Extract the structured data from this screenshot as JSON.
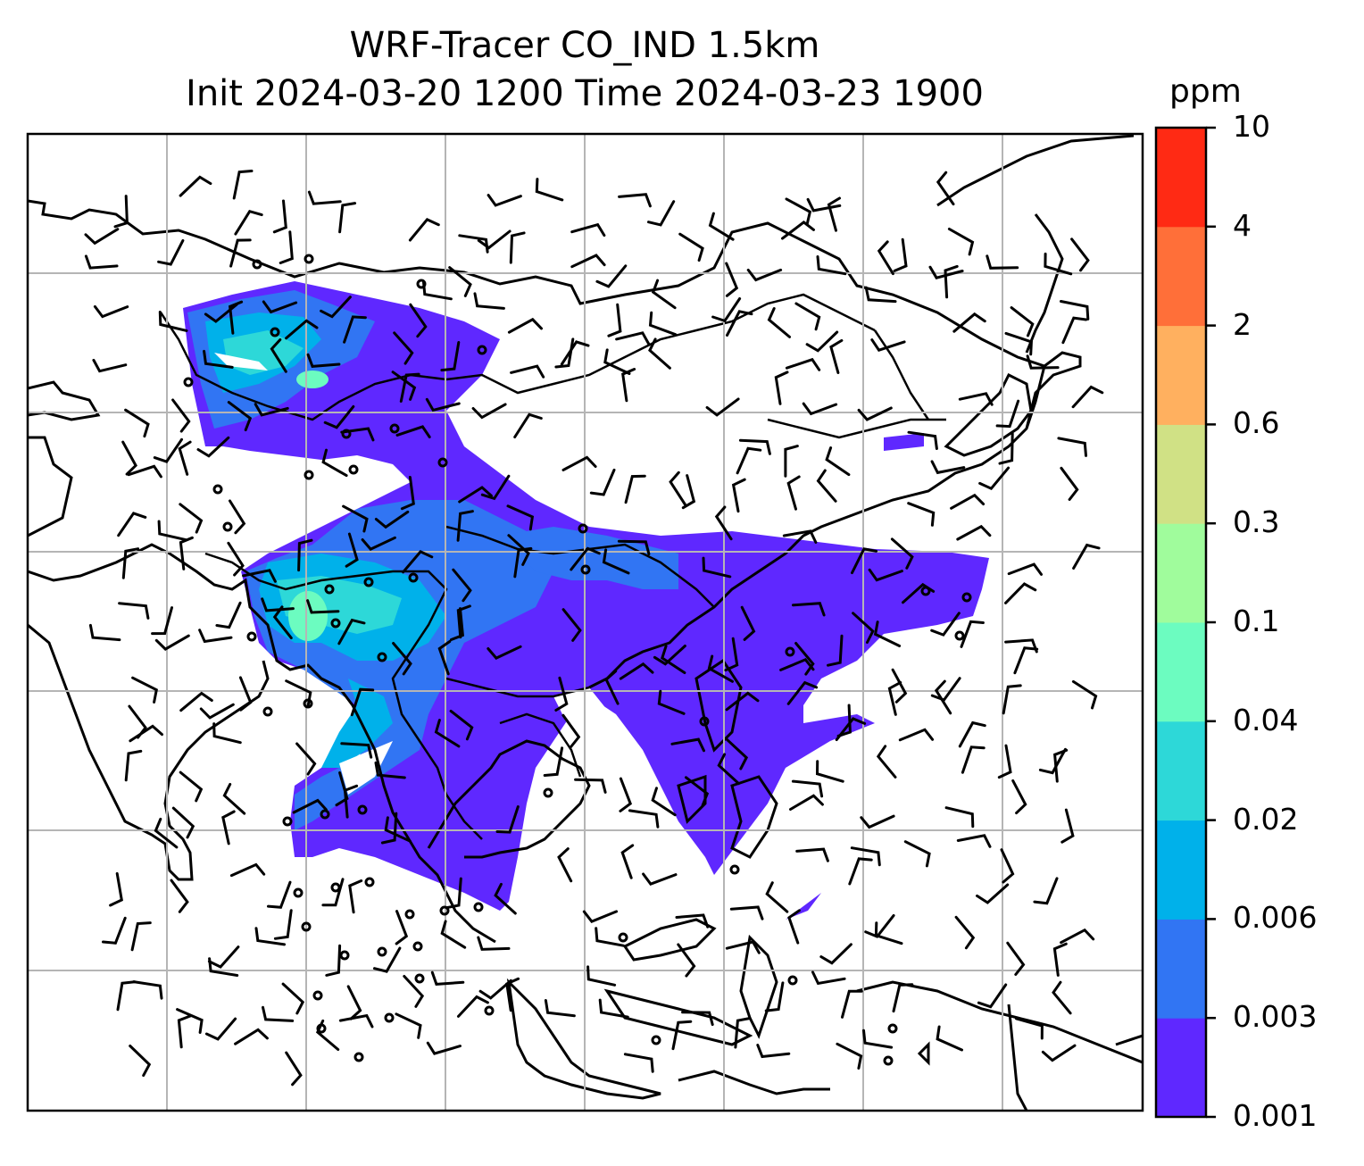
{
  "title_line1": "WRF-Tracer CO_IND 1.5km",
  "title_line2": "Init 2024-03-20 1200 Time 2024-03-23 1900",
  "colorbar": {
    "unit": "ppm",
    "levels": [
      "0.001",
      "0.003",
      "0.006",
      "0.02",
      "0.04",
      "0.1",
      "0.3",
      "0.6",
      "2",
      "4",
      "10"
    ],
    "colors": [
      "#5f28ff",
      "#3175f3",
      "#00b1ea",
      "#2dd8d8",
      "#6cfcc0",
      "#a0fc9c",
      "#d0e185",
      "#ffb05f",
      "#ff6f39",
      "#ff2a14"
    ]
  },
  "map": {
    "field": "CO_IND tracer concentration",
    "gridlines": true,
    "features": [
      "coastlines",
      "country-borders",
      "wind-barbs",
      "calm-circles"
    ]
  }
}
